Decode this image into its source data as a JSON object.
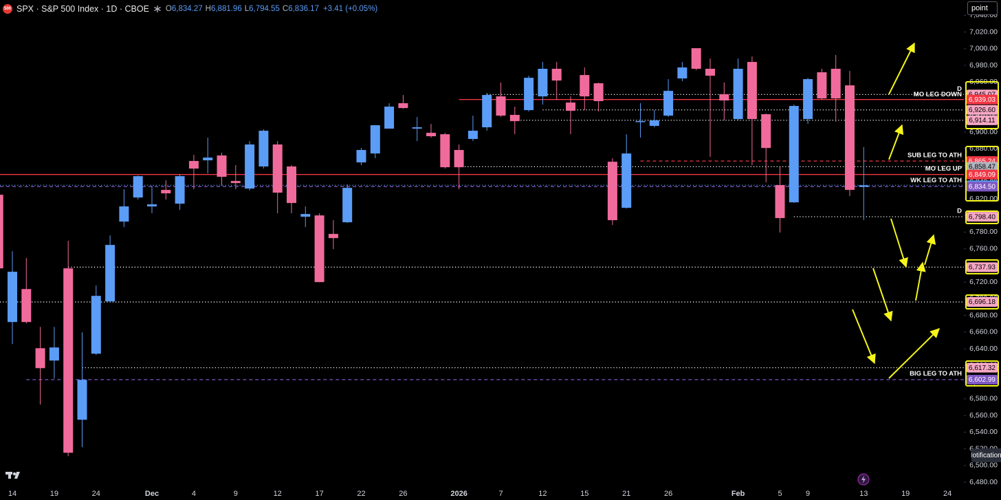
{
  "header": {
    "badge": "500",
    "title": "SPX · S&P 500 Index · 1D · CBOE",
    "ohlc": [
      {
        "key": "O",
        "value": "6,834.27"
      },
      {
        "key": "H",
        "value": "6,881.96"
      },
      {
        "key": "L",
        "value": "6,794.55"
      },
      {
        "key": "C",
        "value": "6,836.17"
      }
    ],
    "change": "+3.41 (+0.05%)"
  },
  "toolbar": {
    "button": "point",
    "tooltip": "Notifications"
  },
  "chart_data": {
    "type": "candlestick",
    "categories": [
      null,
      "14",
      null,
      null,
      "19",
      null,
      null,
      "24",
      null,
      null,
      null,
      "Dec",
      null,
      null,
      "4",
      null,
      null,
      "9",
      null,
      null,
      "12",
      null,
      null,
      "17",
      null,
      null,
      "22",
      null,
      null,
      "26",
      null,
      null,
      null,
      "2026",
      null,
      null,
      "7",
      null,
      null,
      "12",
      null,
      null,
      "15",
      null,
      null,
      "21",
      null,
      null,
      "26",
      null,
      null,
      null,
      null,
      "Feb",
      null,
      null,
      "5",
      null,
      "9",
      null,
      null,
      null,
      "13",
      null,
      null,
      "19",
      null,
      null,
      "24"
    ],
    "open": [
      6824.8,
      6672.1,
      6711.7,
      6640.7,
      6625.9,
      6736.5,
      6554.9,
      6634.1,
      6696.9,
      6792.6,
      6821.5,
      6810.8,
      6830.6,
      6814.1,
      6865.3,
      6866.1,
      6871.9,
      6841.3,
      6832.2,
      6858.7,
      6885.1,
      6858.7,
      6798.4,
      6800.0,
      6777.8,
      6791.8,
      6863.6,
      6874.3,
      6904.1,
      6934.6,
      6904.1,
      6899.1,
      6897.4,
      6878.5,
      6891.7,
      6905.7,
      6942.8,
      6920.6,
      6926.3,
      6942.8,
      6975.9,
      6935.4,
      6968.4,
      6958.5,
      6864.4,
      6809.1,
      6912.3,
      6907.4,
      6919.7,
      6964.3,
      7000.6,
      6975.9,
      6945.3,
      6915.6,
      6984.1,
      6921.4,
      6836.4,
      6815.7,
      6915.6,
      6971.7,
      6975.9,
      6956.0,
      6834.27,
      null,
      null,
      null,
      null,
      null,
      null
    ],
    "high": [
      6828,
      6757.1,
      6749,
      6666.3,
      6666.3,
      6769.5,
      6659.7,
      6715.9,
      6776.1,
      6831.4,
      6847.9,
      6835.5,
      6842.1,
      6849.6,
      6872.7,
      6893.3,
      6875.2,
      6860.3,
      6889.2,
      6903.3,
      6889.2,
      6860.3,
      6810.8,
      6802.5,
      6794.3,
      6837.2,
      6880.9,
      6908.2,
      6934.6,
      6944.5,
      6918.1,
      6909.8,
      6899.1,
      6885.1,
      6919.7,
      6947.0,
      6959.4,
      6930.5,
      6967.6,
      6984.1,
      6984.1,
      6942.8,
      6977.5,
      6959.4,
      6868.6,
      6897.4,
      6934.6,
      6926.3,
      6963.5,
      6984.1,
      7000.6,
      6988.2,
      6959.4,
      6988.2,
      6990.7,
      6922.2,
      6857.8,
      6933.0,
      6965.1,
      6975.9,
      6992.4,
      6973.4,
      6881.96,
      null,
      null,
      null,
      null,
      null,
      null
    ],
    "low": [
      6733,
      6645.7,
      6670.5,
      6573.1,
      6604.4,
      6511.2,
      6521.9,
      6632.5,
      6695.2,
      6786.0,
      6819.0,
      6802.5,
      6819.0,
      6806.6,
      6831.4,
      6850.4,
      6835.5,
      6831.4,
      6829.8,
      6856.2,
      6802.5,
      6802.5,
      6786.0,
      6720.0,
      6759.6,
      6791.0,
      6860.3,
      6868.6,
      6904.1,
      6928.0,
      6889.2,
      6893.3,
      6856.2,
      6831.4,
      6889.2,
      6901.6,
      6918.1,
      6897.4,
      6924.7,
      6932.9,
      6938.7,
      6897.4,
      6926.3,
      6924.7,
      6788.5,
      6808.3,
      6893.3,
      6905.7,
      6918.1,
      6961.0,
      6974.2,
      6870.2,
      6914.0,
      6914.0,
      6860.3,
      6839.7,
      6779.4,
      6814.9,
      6909.8,
      6938.7,
      6912.3,
      6823.2,
      6794.55,
      null,
      null,
      null,
      null,
      null,
      null
    ],
    "close": [
      6736.5,
      6732.4,
      6672.1,
      6616.8,
      6641.6,
      6515.3,
      6602.8,
      6703.5,
      6764.6,
      6810.8,
      6847.1,
      6813.3,
      6826.5,
      6847.1,
      6856.2,
      6869.4,
      6846.3,
      6838.8,
      6885.1,
      6901.6,
      6827.3,
      6814.9,
      6801.7,
      6720.0,
      6772.8,
      6833.1,
      6878.5,
      6908.2,
      6930.5,
      6928.8,
      6905.7,
      6895.0,
      6857.8,
      6857.8,
      6901.6,
      6944.5,
      6919.7,
      6913.1,
      6965.1,
      6975.9,
      6961.8,
      6925.5,
      6942.8,
      6937.1,
      6794.3,
      6874.3,
      6913.1,
      6914.0,
      6949.4,
      6977.5,
      6975.9,
      6967.6,
      6937.9,
      6975.9,
      6915.6,
      6880.9,
      6796.8,
      6931.3,
      6963.5,
      6940.4,
      6940.4,
      6830.6,
      6836.17,
      null,
      null,
      null,
      null,
      null,
      null
    ],
    "up_color": "#5b9cf6",
    "down_color": "#f06b9b",
    "ylim": [
      6471,
      7058.4
    ],
    "yticks": [
      {
        "value": 6480,
        "label": "6,480.00"
      },
      {
        "value": 6500,
        "label": "6,500.00"
      },
      {
        "value": 6520,
        "label": "6,520.00"
      },
      {
        "value": 6540,
        "label": "6,540.00"
      },
      {
        "value": 6560,
        "label": "6,560.00"
      },
      {
        "value": 6580,
        "label": "6,580.00"
      },
      {
        "value": 6600,
        "label": "6,600.00"
      },
      {
        "value": 6620,
        "label": "6,620.00"
      },
      {
        "value": 6640,
        "label": "6,640.00"
      },
      {
        "value": 6660,
        "label": "6,660.00"
      },
      {
        "value": 6680,
        "label": "6,680.00"
      },
      {
        "value": 6700,
        "label": "6,700.00"
      },
      {
        "value": 6720,
        "label": "6,720.00"
      },
      {
        "value": 6740,
        "label": "6,740.00"
      },
      {
        "value": 6760,
        "label": "6,760.00"
      },
      {
        "value": 6780,
        "label": "6,780.00"
      },
      {
        "value": 6800,
        "label": "6,800.00"
      },
      {
        "value": 6820,
        "label": "6,820.00"
      },
      {
        "value": 6840,
        "label": "6,840.00"
      },
      {
        "value": 6860,
        "label": "6,860.00"
      },
      {
        "value": 6880,
        "label": "6,880.00"
      },
      {
        "value": 6900,
        "label": "6,900.00"
      },
      {
        "value": 6920,
        "label": "6,920.00"
      },
      {
        "value": 6940,
        "label": "6,940.00"
      },
      {
        "value": 6960,
        "label": "6,960.00"
      },
      {
        "value": 6980,
        "label": "6,980.00"
      },
      {
        "value": 7000,
        "label": "7,000.00"
      },
      {
        "value": 7020,
        "label": "7,020.00"
      },
      {
        "value": 7040,
        "label": "7,040.00"
      }
    ],
    "grid": false,
    "levels": [
      {
        "value": 6945.07,
        "label": "6,945.07",
        "name": "MO LEG DOWN",
        "tag": "D",
        "line_color": "#ffffff",
        "label_color": "#f7a8c4",
        "text_color": "#000000",
        "style": "dotted",
        "from": 35
      },
      {
        "value": 6939.03,
        "label": "6,939.03",
        "line_color": "#f23645",
        "label_color": "#f23645",
        "text_color": "#ffffff",
        "style": "solid",
        "from": 33
      },
      {
        "value": 6926.6,
        "label": "6,926.60",
        "line_color": "#ffffff",
        "label_color": "#f7a8c4",
        "text_color": "#000000",
        "style": "dotted",
        "from": 39
      },
      {
        "value": 6914.11,
        "label": "6,914.11",
        "line_color": "#ffffff",
        "label_color": "#f7a8c4",
        "text_color": "#000000",
        "style": "dotted",
        "from": 37
      },
      {
        "value": 6865.24,
        "label": "6,865.24",
        "name": "SUB LEG TO ATH",
        "line_color": "#f23645",
        "label_color": "#f23645",
        "text_color": "#ffffff",
        "style": "dashed",
        "from": 46
      },
      {
        "value": 6858.47,
        "label": "6,858.47",
        "name": "MO LEG UP",
        "line_color": "#ffffff",
        "label_color": "#b2b5be",
        "text_color": "#000000",
        "style": "dotted",
        "from": 33
      },
      {
        "value": 6849.09,
        "label": "6,849.09",
        "line_color": "#f23645",
        "label_color": "#f23645",
        "text_color": "#ffffff",
        "style": "solid",
        "from": 0
      },
      {
        "value": 6836.17,
        "label": "6,836.17",
        "line_color": "#5b9cf6",
        "label_color": "#5b9cf6",
        "text_color": "#ffffff",
        "style": "dotted",
        "from": 0
      },
      {
        "value": 6834.5,
        "label": "6,834.50",
        "name": "WK LEG TO ATH",
        "line_color": "#7e57c2",
        "label_color": "#7e57c2",
        "text_color": "#ffffff",
        "style": "dashed",
        "from": 0
      },
      {
        "value": 6798.4,
        "label": "6,798.40",
        "tag": "D",
        "line_color": "#ffffff",
        "label_color": "#f7a8c4",
        "text_color": "#000000",
        "style": "dotted",
        "from": 57
      },
      {
        "value": 6737.93,
        "label": "6,737.93",
        "line_color": "#ffffff",
        "label_color": "#f7a8c4",
        "text_color": "#000000",
        "style": "dotted",
        "from": 5
      },
      {
        "value": 6696.18,
        "label": "6,696.18",
        "line_color": "#ffffff",
        "label_color": "#f7a8c4",
        "text_color": "#000000",
        "style": "dotted",
        "from": 0
      },
      {
        "value": 6617.32,
        "label": "6,617.32",
        "name": "BIG LEG TO ATH",
        "line_color": "#ffffff",
        "label_color": "#f7a8c4",
        "text_color": "#000000",
        "style": "dotted",
        "from": 6
      },
      {
        "value": 6602.99,
        "label": "6,602.99",
        "line_color": "#7e57c2",
        "label_color": "#7e57c2",
        "text_color": "#ffffff",
        "style": "dashed",
        "from": 2
      }
    ]
  }
}
